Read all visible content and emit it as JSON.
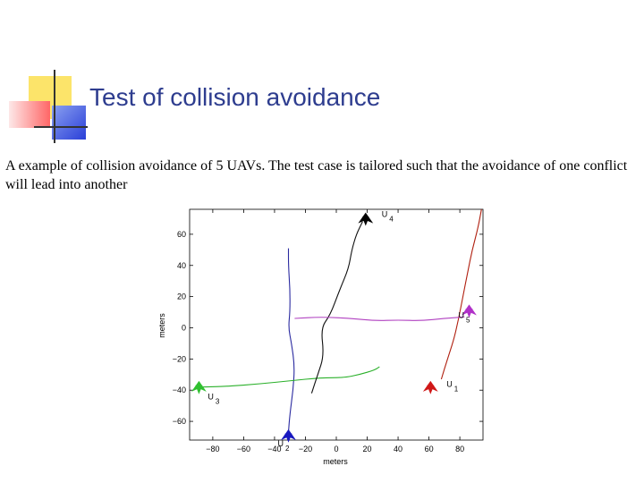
{
  "slide": {
    "title": "Test of collision avoidance",
    "caption": "A example of collision avoidance of 5 UAVs. The test case is tailored such that the avoidance of one conflict will lead into another"
  },
  "chart_data": {
    "type": "line",
    "title": "",
    "xlabel": "meters",
    "ylabel": "meters",
    "xlim": [
      -95,
      95
    ],
    "ylim": [
      -72,
      76
    ],
    "xticks": [
      -80,
      -60,
      -40,
      -20,
      0,
      20,
      40,
      60,
      80
    ],
    "yticks": [
      60,
      40,
      20,
      0,
      -20,
      -40,
      -60
    ],
    "xtick_labels": [
      "−80",
      "−60",
      "−40",
      "−20",
      "0",
      "20",
      "40",
      "60",
      "80"
    ],
    "ytick_labels": [
      "60",
      "40",
      "20",
      "0",
      "−20",
      "−40",
      "−60"
    ],
    "grid": false,
    "series": [
      {
        "name": "U1",
        "color": "#b02010",
        "x": [
          68,
          72,
          76,
          79,
          82,
          85,
          88,
          92,
          94
        ],
        "y": [
          -33,
          -20,
          -8,
          5,
          20,
          35,
          50,
          65,
          76
        ]
      },
      {
        "name": "U2",
        "color": "#2a2aa0",
        "x": [
          -31,
          -30,
          -28,
          -27,
          -29,
          -31,
          -30,
          -30,
          -31,
          -31
        ],
        "y": [
          -67,
          -55,
          -40,
          -25,
          -10,
          0,
          10,
          25,
          40,
          51
        ]
      },
      {
        "name": "U3",
        "color": "#2ab02a",
        "x": [
          -87,
          -70,
          -50,
          -30,
          -10,
          5,
          15,
          25,
          28
        ],
        "y": [
          -38,
          -37.5,
          -36,
          -34,
          -32,
          -32,
          -30,
          -27,
          -25
        ]
      },
      {
        "name": "U4",
        "color": "#101010",
        "x": [
          -16,
          -12,
          -8,
          -10,
          -4,
          2,
          8,
          10,
          13,
          17
        ],
        "y": [
          -42,
          -30,
          -18,
          0,
          8,
          24,
          38,
          50,
          60,
          68
        ]
      },
      {
        "name": "U5",
        "color": "#b040c0",
        "x": [
          -27,
          -10,
          10,
          25,
          40,
          55,
          70,
          83
        ],
        "y": [
          6,
          7,
          6,
          4.5,
          5,
          4.5,
          6,
          7
        ]
      }
    ],
    "markers": [
      {
        "label_main": "U",
        "label_sub": "1",
        "color": "#d01818",
        "x": 61,
        "y": -38
      },
      {
        "label_main": "U",
        "label_sub": "2",
        "color": "#1818c0",
        "x": -31,
        "y": -69
      },
      {
        "label_main": "U",
        "label_sub": "3",
        "color": "#30c030",
        "x": -89,
        "y": -38
      },
      {
        "label_main": "U",
        "label_sub": "4",
        "color": "#000000",
        "x": 19,
        "y": 70
      },
      {
        "label_main": "U",
        "label_sub": "5",
        "color": "#b030c8",
        "x": 86,
        "y": 11
      }
    ]
  }
}
